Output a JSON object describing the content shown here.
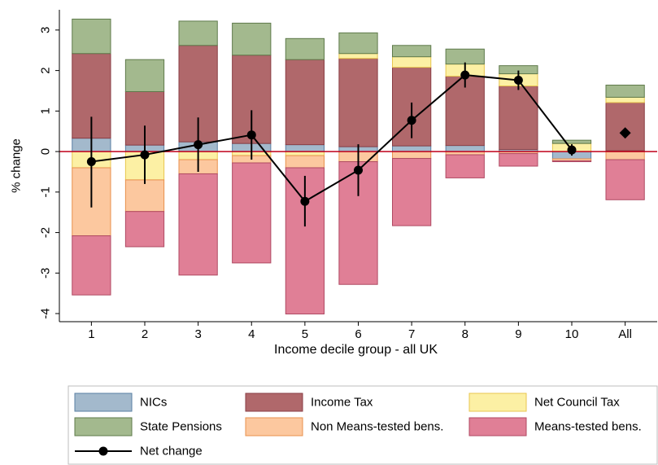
{
  "chart_data": {
    "type": "bar",
    "stacked": true,
    "xlabel": "Income decile group - all UK",
    "ylabel": "% change",
    "ylim": [
      -4.2,
      3.5
    ],
    "yticks": [
      -4,
      -3,
      -2,
      -1,
      0,
      1,
      2,
      3
    ],
    "categories": [
      "1",
      "2",
      "3",
      "4",
      "5",
      "6",
      "7",
      "8",
      "9",
      "10",
      "All"
    ],
    "series": [
      {
        "name": "NICs",
        "color": "#a3b9cc",
        "border": "#5a7fa3",
        "values": [
          0.33,
          0.16,
          0.24,
          0.2,
          0.17,
          0.12,
          0.14,
          0.15,
          0.05,
          -0.18,
          0.02
        ]
      },
      {
        "name": "Income Tax",
        "color": "#b0686b",
        "border": "#8a3e44",
        "values": [
          2.09,
          1.32,
          2.38,
          2.18,
          2.1,
          2.18,
          1.94,
          1.71,
          1.57,
          0.0,
          1.19
        ]
      },
      {
        "name": "Net Council Tax",
        "color": "#fcf0a4",
        "border": "#e8c64f",
        "values": [
          -0.4,
          -0.7,
          -0.2,
          -0.1,
          -0.1,
          0.12,
          0.26,
          0.3,
          0.3,
          0.2,
          0.13
        ]
      },
      {
        "name": "State Pensions",
        "color": "#a3b98e",
        "border": "#5f7a4b",
        "values": [
          0.85,
          0.79,
          0.6,
          0.79,
          0.52,
          0.51,
          0.28,
          0.37,
          0.2,
          0.08,
          0.3
        ]
      },
      {
        "name": "Non Means-tested bens.",
        "color": "#fcc89f",
        "border": "#e8914d",
        "values": [
          -1.68,
          -0.78,
          -0.35,
          -0.18,
          -0.3,
          -0.25,
          -0.17,
          -0.08,
          -0.05,
          -0.05,
          -0.2
        ]
      },
      {
        "name": "Means-tested bens.",
        "color": "#e07f96",
        "border": "#b04a63",
        "values": [
          -1.46,
          -0.87,
          -2.5,
          -2.47,
          -3.61,
          -3.03,
          -1.66,
          -0.57,
          -0.31,
          -0.02,
          -0.99
        ]
      }
    ],
    "net_change": {
      "name": "Net change",
      "values": [
        -0.25,
        -0.08,
        0.17,
        0.41,
        -1.23,
        -0.46,
        0.77,
        1.89,
        1.76,
        0.04,
        0.46
      ],
      "ci_low": [
        -1.38,
        -0.8,
        -0.5,
        -0.2,
        -1.85,
        -1.1,
        0.33,
        1.58,
        1.52,
        -0.1,
        null
      ],
      "ci_high": [
        0.86,
        0.64,
        0.84,
        1.02,
        -0.6,
        0.18,
        1.21,
        2.2,
        2.0,
        0.18,
        null
      ],
      "color": "#000000"
    },
    "legend": {
      "position": "bottom",
      "columns": 3,
      "order": [
        "NICs",
        "Income Tax",
        "Net Council Tax",
        "State Pensions",
        "Non Means-tested bens.",
        "Means-tested bens.",
        "Net change"
      ]
    },
    "zero_line_color": "#c0001a",
    "grid": false
  }
}
